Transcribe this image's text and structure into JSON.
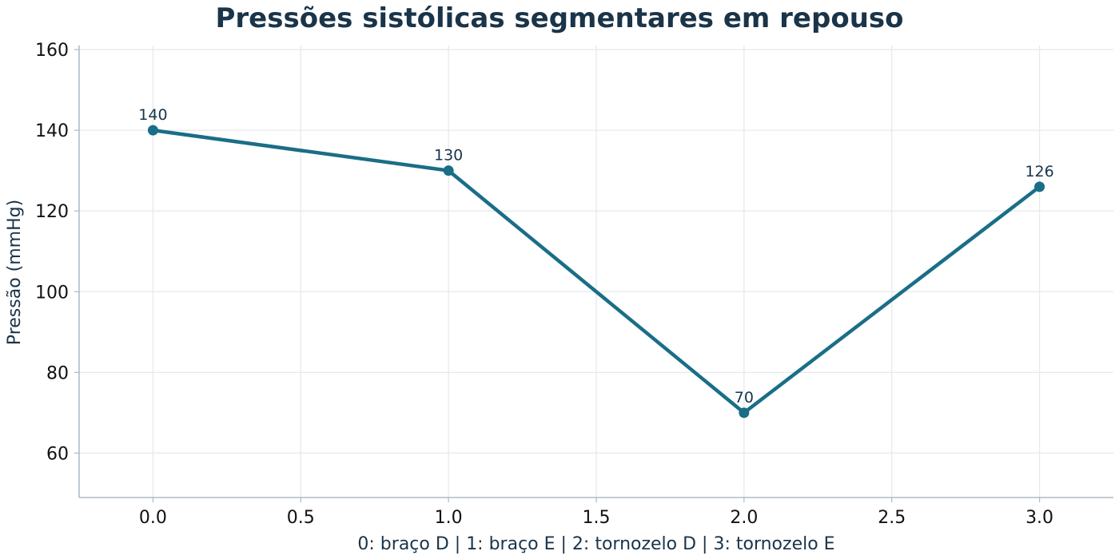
{
  "chart_data": {
    "type": "line",
    "title": "Pressões sistólicas segmentares em repouso",
    "xlabel": "0: braço D | 1: braço E | 2: tornozelo D | 3: tornozelo E",
    "ylabel": "Pressão (mmHg)",
    "xlim": [
      -0.25,
      3.25
    ],
    "ylim": [
      49,
      161
    ],
    "xticks": [
      "0.0",
      "0.5",
      "1.0",
      "1.5",
      "2.0",
      "2.5",
      "3.0"
    ],
    "yticks": [
      "60",
      "80",
      "100",
      "120",
      "140",
      "160"
    ],
    "grid": true,
    "series": [
      {
        "x": [
          0,
          1,
          2,
          3
        ],
        "y": [
          140,
          130,
          70,
          126
        ],
        "labels": [
          "140",
          "130",
          "70",
          "126"
        ],
        "color": "#1a6e87"
      }
    ],
    "colors": {
      "title": "#1a3449",
      "axis_label": "#1a3449",
      "grid": "#e6e9ec",
      "spine": "#b0bcc6"
    }
  }
}
